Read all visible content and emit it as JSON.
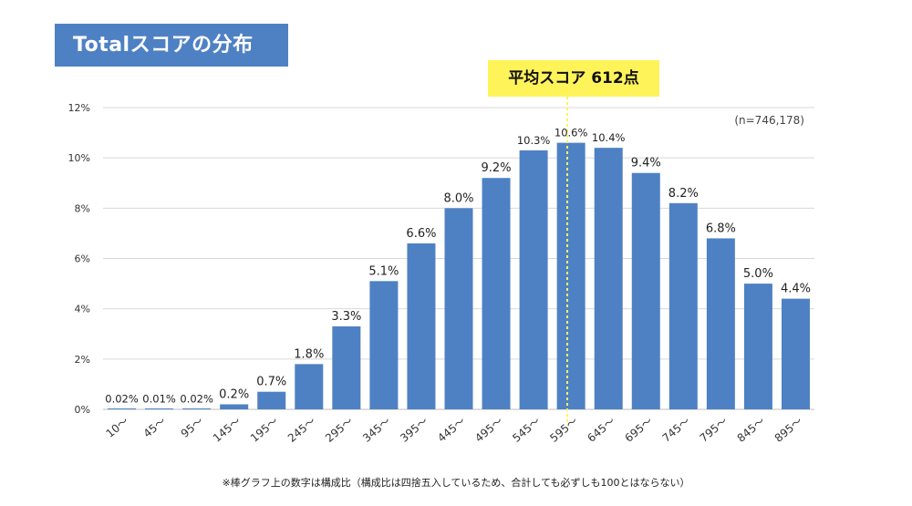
{
  "title": "Totalスコアの分布",
  "average_label": "平均スコア 612点",
  "n_note": "(n=746,178)",
  "footnote": "※棒グラフ上の数字は構成比（構成比は四捨五入しているため、合計しても必ずしも100とはならない）",
  "colors": {
    "bar": "#4e81c4",
    "title_bg": "#4e81c4",
    "avg_bg": "#fff35a",
    "avg_line": "#fff35a",
    "grid": "#d9d9d9"
  },
  "chart_data": {
    "type": "bar",
    "categories": [
      "10～",
      "45～",
      "95～",
      "145～",
      "195～",
      "245～",
      "295～",
      "345～",
      "395～",
      "445～",
      "495～",
      "545～",
      "595～",
      "645～",
      "695～",
      "745～",
      "795～",
      "845～",
      "895～"
    ],
    "values": [
      0.02,
      0.01,
      0.02,
      0.2,
      0.7,
      1.8,
      3.3,
      5.1,
      6.6,
      8.0,
      9.2,
      10.3,
      10.6,
      10.4,
      9.4,
      8.2,
      6.8,
      5.0,
      4.4
    ],
    "value_labels": [
      "0.02%",
      "0.01%",
      "0.02%",
      "0.2%",
      "0.7%",
      "1.8%",
      "3.3%",
      "5.1%",
      "6.6%",
      "8.0%",
      "9.2%",
      "10.3%",
      "10.6%",
      "10.4%",
      "9.4%",
      "8.2%",
      "6.8%",
      "5.0%",
      "4.4%"
    ],
    "ylim": [
      0,
      12
    ],
    "yticks": [
      "0%",
      "2%",
      "4%",
      "6%",
      "8%",
      "10%",
      "12%"
    ],
    "grid": true,
    "average_marker_value": 612
  }
}
